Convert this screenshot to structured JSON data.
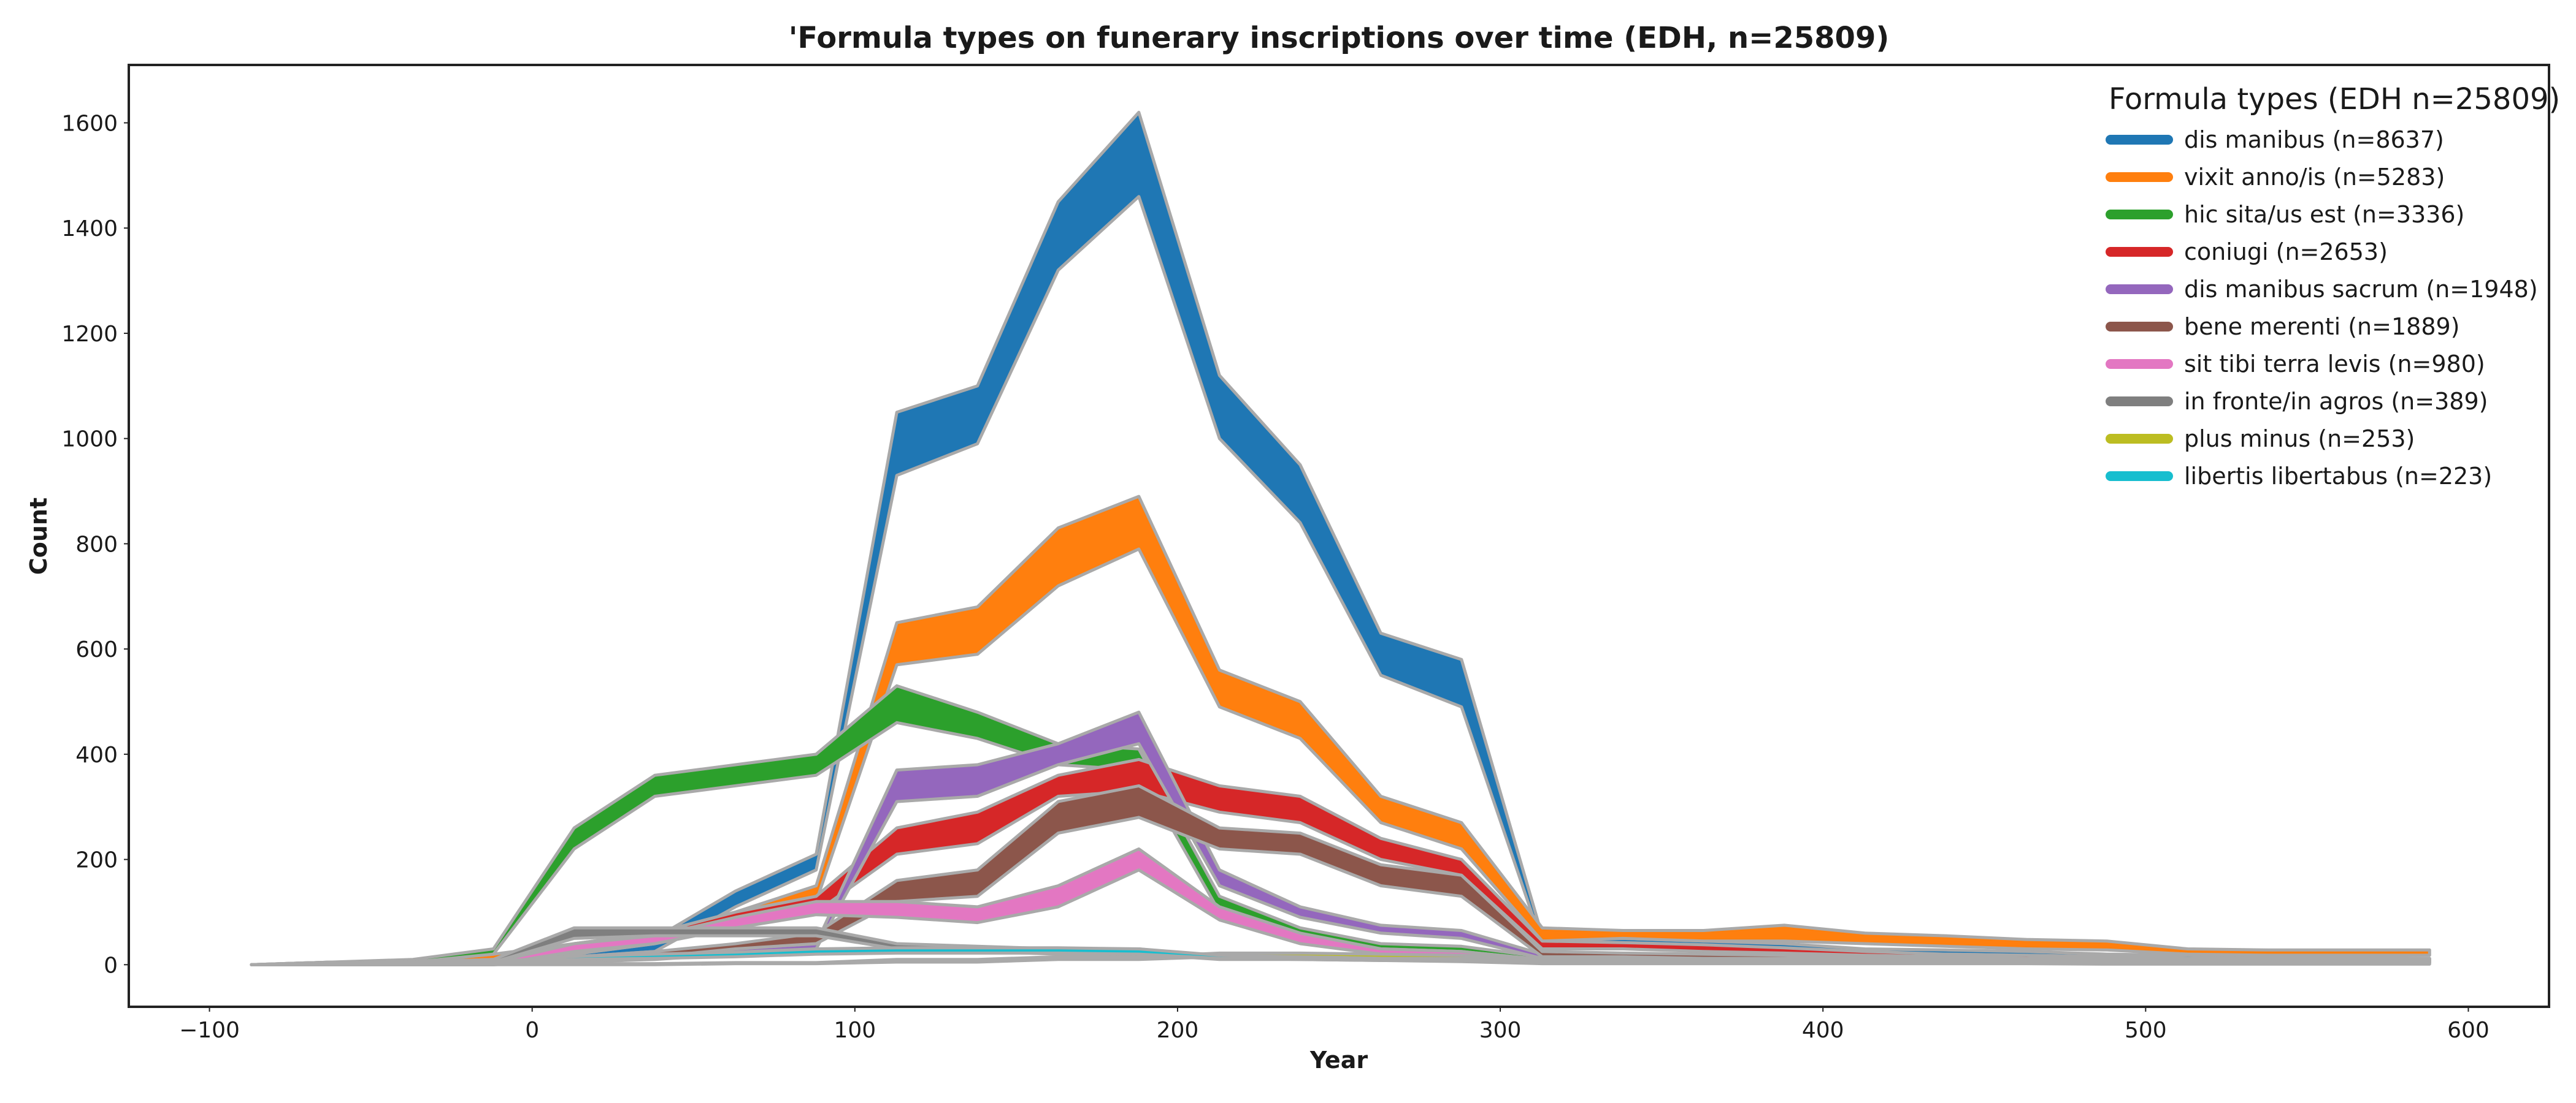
{
  "chart_data": {
    "type": "area",
    "title": "'Formula types on funerary inscriptions over time (EDH, n=25809)",
    "xlabel": "Year",
    "ylabel": "Count",
    "xlim": [
      -125,
      625
    ],
    "ylim": [
      -80,
      1710
    ],
    "x_ticks": [
      -100,
      0,
      100,
      200,
      300,
      400,
      500,
      600
    ],
    "x_tick_labels": [
      "−100",
      "0",
      "100",
      "200",
      "300",
      "400",
      "500",
      "600"
    ],
    "y_ticks": [
      0,
      200,
      400,
      600,
      800,
      1000,
      1200,
      1400,
      1600
    ],
    "y_tick_labels": [
      "0",
      "200",
      "400",
      "600",
      "800",
      "1000",
      "1200",
      "1400",
      "1600"
    ],
    "grid": false,
    "legend": {
      "title": "Formula types (EDH n=25809)",
      "placement": "top-right"
    },
    "x": [
      -87,
      -62,
      -37,
      -12,
      13,
      38,
      63,
      88,
      113,
      138,
      163,
      188,
      213,
      238,
      263,
      288,
      313,
      338,
      363,
      388,
      413,
      438,
      463,
      488,
      513,
      538,
      563,
      588
    ],
    "series": [
      {
        "name": "dis manibus (n=8637)",
        "color": "#1f77b4",
        "lower": [
          0,
          0,
          0,
          0,
          15,
          25,
          110,
          180,
          930,
          990,
          1320,
          1460,
          1000,
          840,
          550,
          490,
          40,
          40,
          35,
          30,
          22,
          20,
          18,
          15,
          12,
          12,
          10,
          10
        ],
        "upper": [
          0,
          5,
          5,
          15,
          30,
          50,
          140,
          210,
          1050,
          1100,
          1450,
          1620,
          1120,
          950,
          630,
          580,
          55,
          50,
          45,
          40,
          30,
          28,
          25,
          20,
          18,
          16,
          14,
          12
        ]
      },
      {
        "name": "vixit anno/is (n=5283)",
        "color": "#ff7f0e",
        "lower": [
          0,
          0,
          0,
          0,
          20,
          40,
          80,
          120,
          570,
          590,
          720,
          790,
          490,
          430,
          270,
          220,
          45,
          50,
          45,
          45,
          40,
          35,
          30,
          28,
          20,
          18,
          18,
          18
        ],
        "upper": [
          0,
          5,
          5,
          20,
          40,
          60,
          100,
          150,
          650,
          680,
          830,
          890,
          560,
          500,
          320,
          270,
          70,
          65,
          65,
          75,
          60,
          55,
          48,
          45,
          30,
          28,
          28,
          28
        ]
      },
      {
        "name": "hic sita/us est (n=3336)",
        "color": "#2ca02c",
        "lower": [
          0,
          0,
          5,
          20,
          220,
          320,
          340,
          360,
          460,
          430,
          380,
          370,
          100,
          50,
          30,
          25,
          10,
          8,
          8,
          8,
          6,
          6,
          5,
          5,
          5,
          5,
          5,
          5
        ],
        "upper": [
          0,
          5,
          10,
          30,
          260,
          360,
          380,
          400,
          530,
          480,
          420,
          410,
          130,
          70,
          40,
          35,
          15,
          12,
          12,
          12,
          10,
          10,
          8,
          8,
          8,
          8,
          8,
          8
        ]
      },
      {
        "name": "coniugi (n=2653)",
        "color": "#d62728",
        "lower": [
          0,
          0,
          0,
          0,
          20,
          40,
          70,
          100,
          210,
          230,
          320,
          330,
          290,
          270,
          200,
          170,
          30,
          30,
          25,
          22,
          18,
          15,
          12,
          10,
          8,
          8,
          6,
          6
        ],
        "upper": [
          0,
          5,
          5,
          10,
          40,
          60,
          100,
          130,
          260,
          290,
          360,
          390,
          340,
          320,
          240,
          200,
          45,
          42,
          38,
          32,
          25,
          20,
          18,
          15,
          12,
          12,
          10,
          10
        ]
      },
      {
        "name": "dis manibus sacrum (n=1948)",
        "color": "#9467bd",
        "lower": [
          0,
          0,
          0,
          0,
          5,
          10,
          20,
          30,
          310,
          320,
          380,
          420,
          150,
          90,
          60,
          50,
          12,
          12,
          10,
          10,
          8,
          8,
          6,
          6,
          5,
          5,
          5,
          5
        ],
        "upper": [
          0,
          2,
          2,
          5,
          10,
          20,
          30,
          40,
          370,
          380,
          420,
          480,
          180,
          110,
          75,
          65,
          20,
          18,
          15,
          15,
          12,
          12,
          10,
          10,
          8,
          8,
          8,
          8
        ]
      },
      {
        "name": "bene merenti (n=1889)",
        "color": "#8c564b",
        "lower": [
          0,
          0,
          0,
          0,
          5,
          15,
          30,
          40,
          120,
          130,
          250,
          280,
          220,
          210,
          150,
          130,
          15,
          15,
          12,
          12,
          10,
          10,
          8,
          8,
          6,
          6,
          6,
          6
        ],
        "upper": [
          0,
          2,
          5,
          10,
          15,
          25,
          40,
          60,
          160,
          180,
          310,
          340,
          260,
          250,
          190,
          170,
          25,
          22,
          20,
          18,
          15,
          15,
          12,
          12,
          10,
          10,
          10,
          10
        ]
      },
      {
        "name": "sit tibi terra levis (n=980)",
        "color": "#e377c2",
        "lower": [
          0,
          0,
          0,
          0,
          25,
          40,
          70,
          95,
          90,
          80,
          110,
          180,
          85,
          40,
          20,
          15,
          5,
          5,
          5,
          5,
          4,
          4,
          4,
          3,
          3,
          3,
          3,
          3
        ],
        "upper": [
          0,
          2,
          2,
          5,
          40,
          55,
          90,
          120,
          120,
          110,
          150,
          220,
          110,
          60,
          30,
          25,
          10,
          8,
          8,
          8,
          6,
          6,
          6,
          5,
          5,
          5,
          5,
          5
        ]
      },
      {
        "name": "in fronte/in agros (n=389)",
        "color": "#7f7f7f",
        "lower": [
          0,
          0,
          0,
          5,
          50,
          55,
          55,
          55,
          30,
          25,
          20,
          20,
          10,
          10,
          8,
          8,
          5,
          5,
          5,
          5,
          4,
          4,
          4,
          4,
          4,
          4,
          4,
          4
        ],
        "upper": [
          0,
          2,
          5,
          10,
          70,
          70,
          70,
          70,
          40,
          35,
          30,
          30,
          15,
          15,
          12,
          12,
          8,
          8,
          8,
          8,
          6,
          6,
          6,
          6,
          6,
          6,
          6,
          6
        ]
      },
      {
        "name": "plus minus (n=253)",
        "color": "#bcbd22",
        "lower": [
          0,
          0,
          0,
          0,
          0,
          0,
          2,
          2,
          5,
          5,
          10,
          10,
          15,
          15,
          12,
          12,
          8,
          8,
          8,
          8,
          8,
          8,
          8,
          8,
          8,
          8,
          8,
          8
        ],
        "upper": [
          0,
          0,
          0,
          2,
          2,
          2,
          4,
          4,
          10,
          10,
          15,
          15,
          22,
          22,
          20,
          18,
          12,
          12,
          12,
          12,
          12,
          12,
          12,
          12,
          12,
          12,
          12,
          12
        ]
      },
      {
        "name": "libertis libertabus (n=223)",
        "color": "#17becf",
        "lower": [
          0,
          0,
          0,
          2,
          10,
          12,
          15,
          20,
          22,
          22,
          22,
          20,
          12,
          10,
          8,
          6,
          2,
          2,
          2,
          2,
          2,
          2,
          2,
          1,
          1,
          1,
          1,
          1
        ],
        "upper": [
          0,
          2,
          3,
          6,
          16,
          20,
          24,
          30,
          32,
          32,
          32,
          30,
          18,
          15,
          12,
          10,
          4,
          4,
          4,
          4,
          4,
          4,
          4,
          3,
          3,
          3,
          3,
          3
        ]
      }
    ]
  }
}
